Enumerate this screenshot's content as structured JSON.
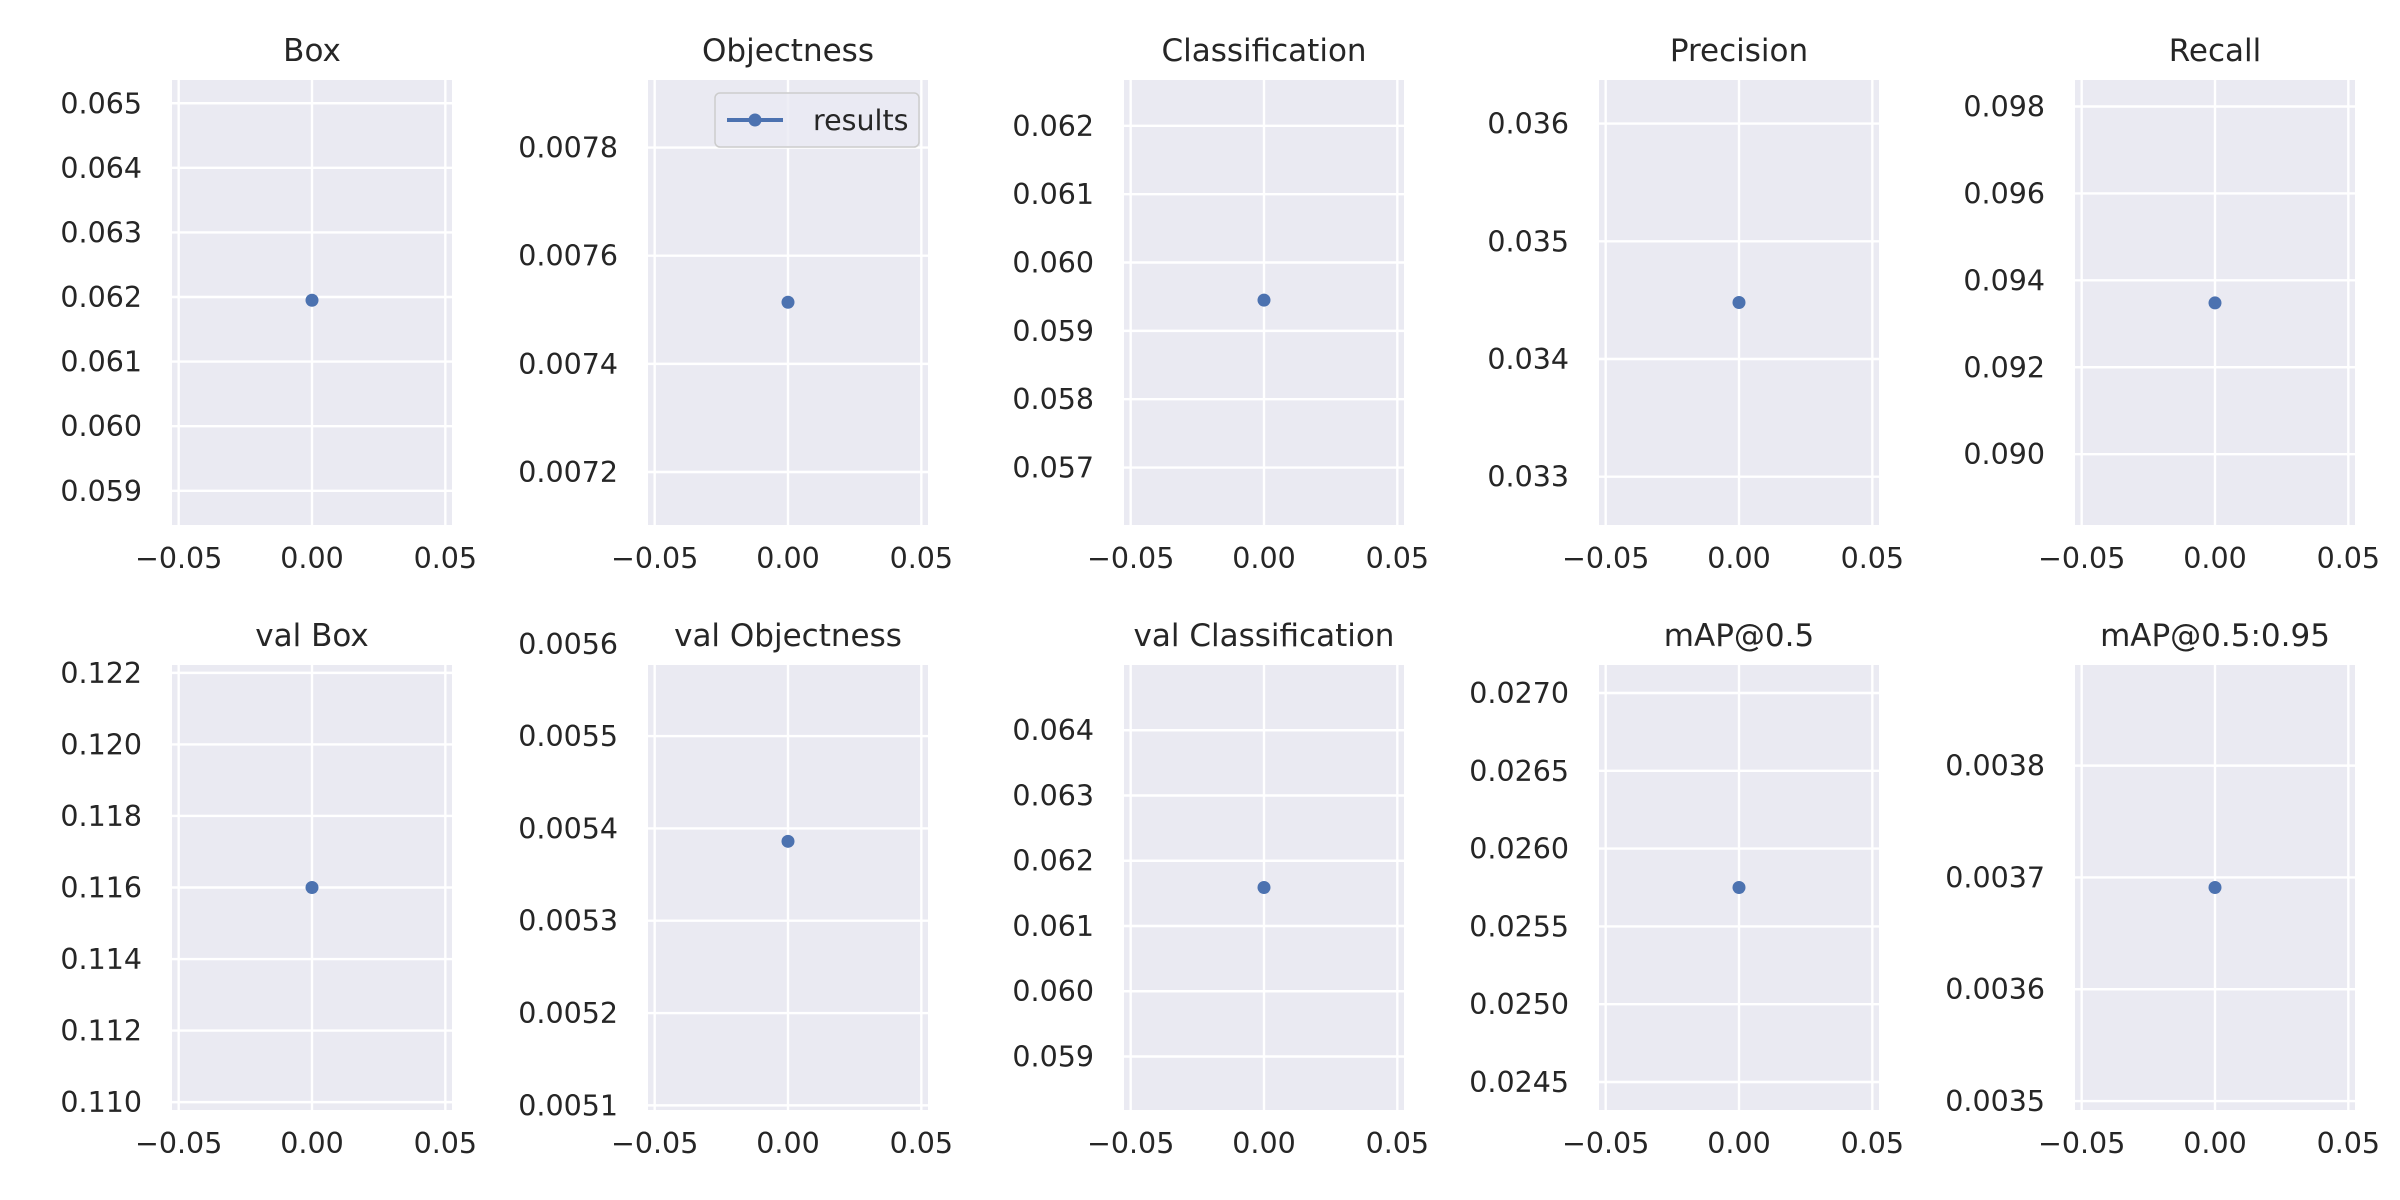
{
  "legend": {
    "label": "results",
    "color": "#4c72b0"
  },
  "style": {
    "plot_bg": "#eaeaf2",
    "grid_color": "#ffffff",
    "marker_color": "#4c72b0"
  },
  "chart_data": [
    {
      "type": "scatter",
      "title": "Box",
      "x": [
        0.0
      ],
      "y": [
        0.06195
      ],
      "xlim": [
        -0.0525,
        0.0525
      ],
      "ylim": [
        0.05847,
        0.06536
      ],
      "xticks": [
        "−0.05",
        "0.00",
        "0.05"
      ],
      "yticks": [
        "0.059",
        "0.060",
        "0.061",
        "0.062",
        "0.063",
        "0.064",
        "0.065"
      ],
      "grid": true
    },
    {
      "type": "scatter",
      "title": "Objectness",
      "x": [
        0.0
      ],
      "y": [
        0.007514
      ],
      "xlim": [
        -0.0525,
        0.0525
      ],
      "ylim": [
        0.007102,
        0.007925
      ],
      "xticks": [
        "−0.05",
        "0.00",
        "0.05"
      ],
      "yticks": [
        "0.0072",
        "0.0074",
        "0.0076",
        "0.0078"
      ],
      "grid": true,
      "legend": "top-right"
    },
    {
      "type": "scatter",
      "title": "Classification",
      "x": [
        0.0
      ],
      "y": [
        0.05945
      ],
      "xlim": [
        -0.0525,
        0.0525
      ],
      "ylim": [
        0.05616,
        0.06267
      ],
      "xticks": [
        "−0.05",
        "0.00",
        "0.05"
      ],
      "yticks": [
        "0.057",
        "0.058",
        "0.059",
        "0.060",
        "0.061",
        "0.062"
      ],
      "grid": true
    },
    {
      "type": "scatter",
      "title": "Precision",
      "x": [
        0.0
      ],
      "y": [
        0.03448
      ],
      "xlim": [
        -0.0525,
        0.0525
      ],
      "ylim": [
        0.03259,
        0.03637
      ],
      "xticks": [
        "−0.05",
        "0.00",
        "0.05"
      ],
      "yticks": [
        "0.033",
        "0.034",
        "0.035",
        "0.036"
      ],
      "grid": true
    },
    {
      "type": "scatter",
      "title": "Recall",
      "x": [
        0.0
      ],
      "y": [
        0.09348
      ],
      "xlim": [
        -0.0525,
        0.0525
      ],
      "ylim": [
        0.08837,
        0.09861
      ],
      "xticks": [
        "−0.05",
        "0.00",
        "0.05"
      ],
      "yticks": [
        "0.090",
        "0.092",
        "0.094",
        "0.096",
        "0.098"
      ],
      "grid": true
    },
    {
      "type": "scatter",
      "title": "val Box",
      "x": [
        0.0
      ],
      "y": [
        0.116
      ],
      "xlim": [
        -0.0525,
        0.0525
      ],
      "ylim": [
        0.10978,
        0.12222
      ],
      "xticks": [
        "−0.05",
        "0.00",
        "0.05"
      ],
      "yticks": [
        "0.110",
        "0.112",
        "0.114",
        "0.116",
        "0.118",
        "0.120",
        "0.122"
      ],
      "grid": true
    },
    {
      "type": "scatter",
      "title": "val Objectness",
      "x": [
        0.0
      ],
      "y": [
        0.005386
      ],
      "xlim": [
        -0.0525,
        0.0525
      ],
      "ylim": [
        0.005095,
        0.005577
      ],
      "xticks": [
        "−0.05",
        "0.00",
        "0.05"
      ],
      "yticks": [
        "0.0051",
        "0.0052",
        "0.0053",
        "0.0054",
        "0.0055",
        "0.0056"
      ],
      "grid": true
    },
    {
      "type": "scatter",
      "title": "val Classification",
      "x": [
        0.0
      ],
      "y": [
        0.06159
      ],
      "xlim": [
        -0.0525,
        0.0525
      ],
      "ylim": [
        0.05818,
        0.065
      ],
      "xticks": [
        "−0.05",
        "0.00",
        "0.05"
      ],
      "yticks": [
        "0.059",
        "0.060",
        "0.061",
        "0.062",
        "0.063",
        "0.064"
      ],
      "grid": true
    },
    {
      "type": "scatter",
      "title": "mAP@0.5",
      "x": [
        0.0
      ],
      "y": [
        0.02575
      ],
      "xlim": [
        -0.0525,
        0.0525
      ],
      "ylim": [
        0.02432,
        0.02718
      ],
      "xticks": [
        "−0.05",
        "0.00",
        "0.05"
      ],
      "yticks": [
        "0.0245",
        "0.0250",
        "0.0255",
        "0.0260",
        "0.0265",
        "0.0270"
      ],
      "grid": true
    },
    {
      "type": "scatter",
      "title": "mAP@0.5:0.95",
      "x": [
        0.0
      ],
      "y": [
        0.003691
      ],
      "xlim": [
        -0.0525,
        0.0525
      ],
      "ylim": [
        0.003492,
        0.00389
      ],
      "xticks": [
        "−0.05",
        "0.00",
        "0.05"
      ],
      "yticks": [
        "0.0035",
        "0.0036",
        "0.0037",
        "0.0038"
      ],
      "grid": true
    }
  ]
}
